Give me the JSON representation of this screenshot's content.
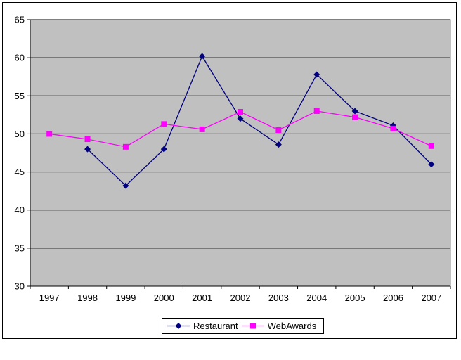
{
  "chart_data": {
    "type": "line",
    "title": "",
    "xlabel": "",
    "ylabel": "",
    "categories": [
      "1997",
      "1998",
      "1999",
      "2000",
      "2001",
      "2002",
      "2003",
      "2004",
      "2005",
      "2006",
      "2007"
    ],
    "series": [
      {
        "name": "Restaurant",
        "color": "#000080",
        "marker": "diamond",
        "values": [
          null,
          48,
          43.2,
          48,
          60.2,
          52,
          48.6,
          57.8,
          53,
          51.1,
          46
        ]
      },
      {
        "name": "WebAwards",
        "color": "#FF00FF",
        "marker": "square",
        "values": [
          50,
          49.3,
          48.3,
          51.3,
          50.6,
          52.9,
          50.5,
          53,
          52.2,
          50.7,
          48.4
        ]
      }
    ],
    "ylim": [
      30,
      65
    ],
    "y_ticks": [
      65,
      60,
      55,
      50,
      45,
      40,
      35,
      30
    ],
    "grid": true,
    "gridline_color": "#000000",
    "plot_bg_color": "#C0C0C0",
    "plot_border_color": "#808080",
    "axis_color": "#000000",
    "legend_position": "bottom"
  }
}
